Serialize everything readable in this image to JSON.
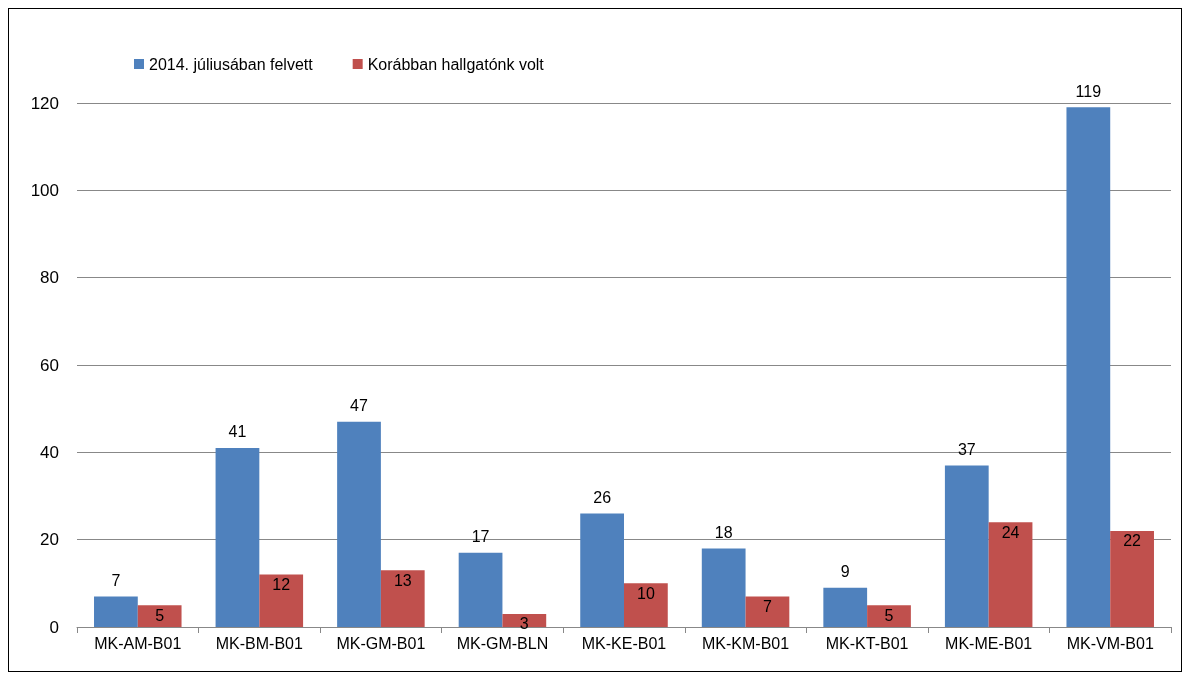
{
  "chart_data": {
    "type": "bar",
    "categories": [
      "MK-AM-B01",
      "MK-BM-B01",
      "MK-GM-B01",
      "MK-GM-BLN",
      "MK-KE-B01",
      "MK-KM-B01",
      "MK-KT-B01",
      "MK-ME-B01",
      "MK-VM-B01"
    ],
    "series": [
      {
        "name": "2014. júliusában felvett",
        "color": "#4f81bd",
        "values": [
          7,
          41,
          47,
          17,
          26,
          18,
          9,
          37,
          119
        ]
      },
      {
        "name": "Korábban hallgatónk volt",
        "color": "#c0504d",
        "values": [
          5,
          12,
          13,
          3,
          10,
          7,
          5,
          24,
          22
        ]
      }
    ],
    "ylim": [
      0,
      120
    ],
    "yticks": [
      0,
      20,
      40,
      60,
      80,
      100,
      120
    ],
    "grid": "y",
    "legend": "top left",
    "data_labels": true
  }
}
